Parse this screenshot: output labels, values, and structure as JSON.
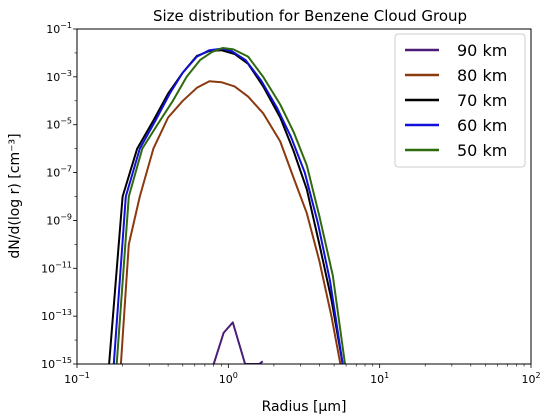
{
  "chart_data": {
    "type": "line",
    "title": "Size distribution for Benzene Cloud Group",
    "xlabel": "Radius [μm]",
    "ylabel": "dN/d(log r) [cm⁻³]",
    "xscale": "log",
    "yscale": "log",
    "xlim": [
      0.1,
      100
    ],
    "ylim": [
      1e-15,
      0.1
    ],
    "x_ticks": [
      {
        "value": 0.1,
        "base": "10",
        "exp": "−1"
      },
      {
        "value": 1,
        "base": "10",
        "exp": "0"
      },
      {
        "value": 10,
        "base": "10",
        "exp": "1"
      },
      {
        "value": 100,
        "base": "10",
        "exp": "2"
      }
    ],
    "y_ticks": [
      {
        "value": 1e-15,
        "base": "10",
        "exp": "−15"
      },
      {
        "value": 1e-13,
        "base": "10",
        "exp": "−13"
      },
      {
        "value": 1e-11,
        "base": "10",
        "exp": "−11"
      },
      {
        "value": 1e-09,
        "base": "10",
        "exp": "−9"
      },
      {
        "value": 1e-07,
        "base": "10",
        "exp": "−7"
      },
      {
        "value": 1e-05,
        "base": "10",
        "exp": "−5"
      },
      {
        "value": 0.001,
        "base": "10",
        "exp": "−3"
      },
      {
        "value": 0.1,
        "base": "10",
        "exp": "−1"
      }
    ],
    "legend_position": "top-right",
    "grid": false,
    "series": [
      {
        "name": "90 km",
        "color": "#4b1d77",
        "x": [
          0.8,
          0.93,
          1.07,
          1.29,
          1.6,
          1.69
        ],
        "y": [
          1e-15,
          2e-14,
          5.5e-14,
          1e-15,
          1e-15,
          1.3e-15
        ]
      },
      {
        "name": "80 km",
        "color": "#8b3a0f",
        "x": [
          0.195,
          0.22,
          0.26,
          0.32,
          0.4,
          0.5,
          0.62,
          0.75,
          0.9,
          1.1,
          1.35,
          1.7,
          2.2,
          2.7,
          3.3,
          4.0,
          4.8,
          5.5
        ],
        "y": [
          1e-15,
          1e-10,
          1e-08,
          1e-06,
          2e-05,
          0.0001,
          0.00035,
          0.00065,
          0.0006,
          0.0004,
          0.00015,
          3e-05,
          2e-06,
          6e-08,
          2e-09,
          2e-11,
          1e-13,
          1e-15
        ]
      },
      {
        "name": "70 km",
        "color": "#000000",
        "x": [
          0.163,
          0.2,
          0.25,
          0.32,
          0.4,
          0.5,
          0.62,
          0.75,
          0.9,
          1.1,
          1.35,
          1.7,
          2.2,
          2.7,
          3.3,
          4.0,
          4.8,
          5.7
        ],
        "y": [
          1e-15,
          1e-08,
          1e-06,
          1.5e-05,
          0.0002,
          0.0015,
          0.0075,
          0.012,
          0.013,
          0.009,
          0.0035,
          0.0004,
          2e-05,
          8e-07,
          2e-08,
          1e-10,
          5e-13,
          1e-15
        ]
      },
      {
        "name": "60 km",
        "color": "#1010d8",
        "x": [
          0.175,
          0.21,
          0.26,
          0.33,
          0.41,
          0.5,
          0.62,
          0.75,
          0.9,
          1.05,
          1.3,
          1.65,
          2.1,
          2.6,
          3.2,
          3.9,
          4.7,
          5.7
        ],
        "y": [
          1e-15,
          1e-08,
          1e-06,
          1.5e-05,
          0.0002,
          0.0015,
          0.007,
          0.013,
          0.015,
          0.012,
          0.005,
          0.0007,
          5e-05,
          3e-06,
          1e-07,
          8e-10,
          3e-12,
          1e-15
        ]
      },
      {
        "name": "50 km",
        "color": "#2e6b0f",
        "x": [
          0.183,
          0.22,
          0.27,
          0.34,
          0.43,
          0.53,
          0.65,
          0.78,
          0.92,
          1.08,
          1.35,
          1.7,
          2.2,
          2.7,
          3.3,
          4.0,
          4.9,
          5.9
        ],
        "y": [
          1e-15,
          1e-08,
          1e-06,
          1e-05,
          0.0001,
          0.001,
          0.005,
          0.011,
          0.016,
          0.014,
          0.007,
          0.001,
          7e-05,
          5e-06,
          2e-07,
          1.5e-09,
          5e-12,
          1e-15
        ]
      }
    ]
  }
}
